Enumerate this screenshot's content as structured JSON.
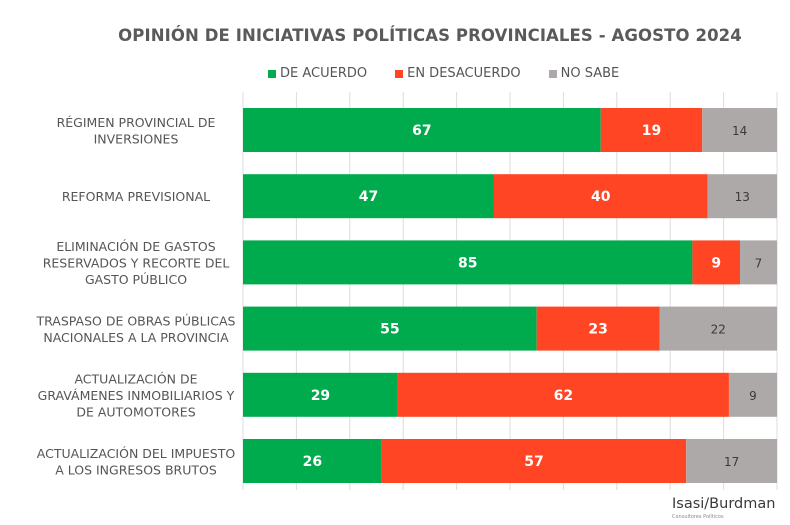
{
  "chart_data": {
    "type": "bar",
    "orientation": "horizontal",
    "stacked": true,
    "normalized": true,
    "title": "OPINIÓN DE INICIATIVAS POLÍTICAS PROVINCIALES  - AGOSTO 2024",
    "xlabel": "",
    "ylabel": "",
    "xlim": [
      0,
      100
    ],
    "grid": true,
    "legend_position": "top-center",
    "categories": [
      "RÉGIMEN PROVINCIAL DE INVERSIONES",
      "REFORMA PREVISIONAL",
      "ELIMINACIÓN DE GASTOS RESERVADOS Y RECORTE DEL GASTO PÚBLICO",
      "TRASPASO DE OBRAS PÚBLICAS NACIONALES A LA PROVINCIA",
      "ACTUALIZACIÓN DE GRAVÁMENES INMOBILIARIOS Y DE AUTOMOTORES",
      "ACTUALIZACIÓN DEL IMPUESTO A LOS INGRESOS BRUTOS"
    ],
    "category_lines": [
      [
        "RÉGIMEN PROVINCIAL DE",
        "INVERSIONES"
      ],
      [
        "REFORMA PREVISIONAL"
      ],
      [
        "ELIMINACIÓN DE GASTOS",
        "RESERVADOS Y RECORTE DEL",
        "GASTO PÚBLICO"
      ],
      [
        "TRASPASO DE OBRAS PÚBLICAS",
        "NACIONALES A LA PROVINCIA"
      ],
      [
        "ACTUALIZACIÓN DE",
        "GRAVÁMENES INMOBILIARIOS Y",
        "DE AUTOMOTORES"
      ],
      [
        "ACTUALIZACIÓN DEL IMPUESTO",
        "A LOS INGRESOS BRUTOS"
      ]
    ],
    "series": [
      {
        "name": "DE ACUERDO",
        "color": "#00AB4E",
        "label_color": "#ffffff",
        "values": [
          67,
          47,
          85,
          55,
          29,
          26
        ]
      },
      {
        "name": "EN DESACUERDO",
        "color": "#FF4524",
        "label_color": "#ffffff",
        "values": [
          19,
          40,
          9,
          23,
          62,
          57
        ]
      },
      {
        "name": "NO SABE",
        "color": "#ADA9A8",
        "label_color": "#3a3a3a",
        "values": [
          14,
          13,
          7,
          22,
          9,
          17
        ]
      }
    ]
  },
  "branding": {
    "logo": "Isasi/Burdman",
    "tagline": "Consultores Políticos"
  }
}
